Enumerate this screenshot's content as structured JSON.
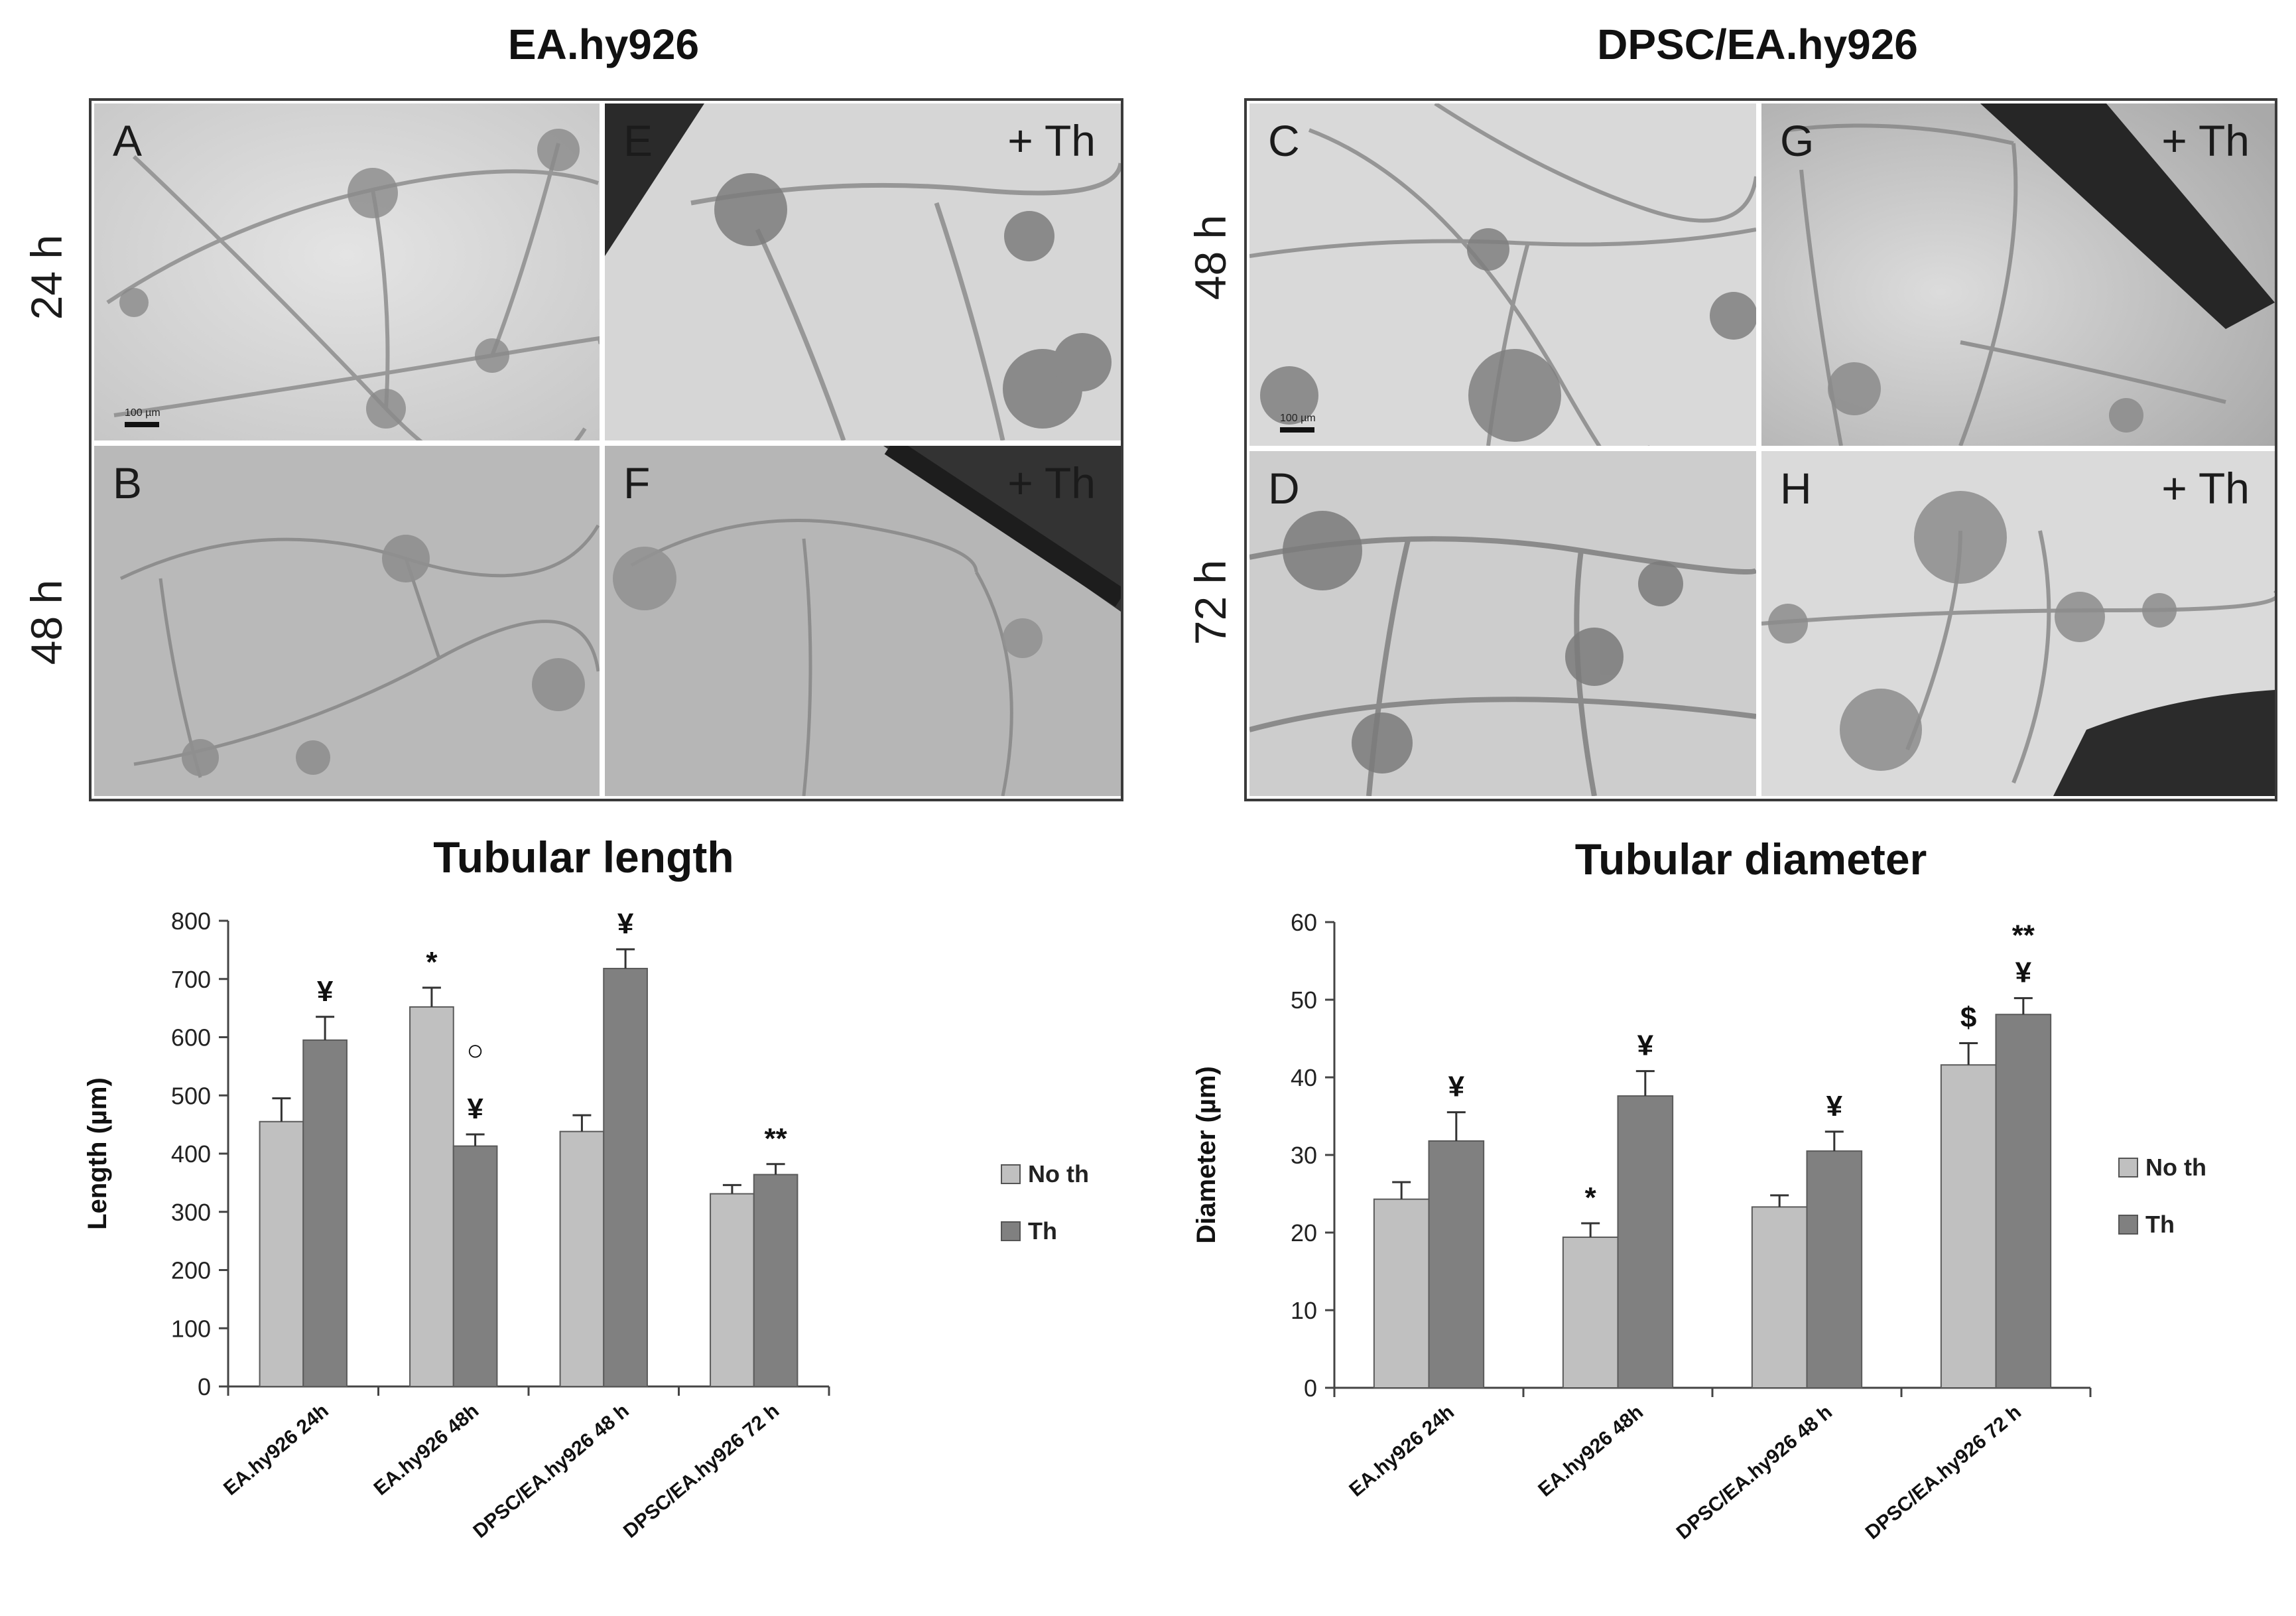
{
  "left_panel": {
    "title": "EA.hy926",
    "row_labels": [
      "24 h",
      "48 h"
    ],
    "images": [
      {
        "label": "A",
        "treatment": "",
        "scale": "100 µm"
      },
      {
        "label": "E",
        "treatment": "+ Th",
        "scale": ""
      },
      {
        "label": "B",
        "treatment": "",
        "scale": ""
      },
      {
        "label": "F",
        "treatment": "+ Th",
        "scale": ""
      }
    ]
  },
  "right_panel": {
    "title": "DPSC/EA.hy926",
    "row_labels": [
      "48 h",
      "72 h"
    ],
    "images": [
      {
        "label": "C",
        "treatment": "",
        "scale": "100 µm"
      },
      {
        "label": "G",
        "treatment": "+ Th",
        "scale": ""
      },
      {
        "label": "D",
        "treatment": "",
        "scale": ""
      },
      {
        "label": "H",
        "treatment": "+ Th",
        "scale": ""
      }
    ]
  },
  "chart_data": [
    {
      "type": "bar",
      "title": "Tubular length",
      "xlabel": "",
      "ylabel": "Length (µm)",
      "ylim": [
        0,
        800
      ],
      "yticks": [
        "0",
        "100",
        "200",
        "300",
        "400",
        "500",
        "600",
        "700",
        "800"
      ],
      "categories": [
        "EA.hy926 24h",
        "EA.hy926 48h",
        "DPSC/EA.hy926 48 h",
        "DPSC/EA.hy926 72 h"
      ],
      "series": [
        {
          "name": "No th",
          "color": "#c0c0c0",
          "values": [
            455,
            652,
            438,
            331
          ],
          "errors": [
            40,
            33,
            28,
            15
          ]
        },
        {
          "name": "Th",
          "color": "#808080",
          "values": [
            595,
            413,
            718,
            364
          ],
          "errors": [
            40,
            20,
            33,
            18
          ]
        }
      ],
      "annotations": [
        {
          "category": 0,
          "series": 1,
          "text": "¥"
        },
        {
          "category": 1,
          "series": 0,
          "text": "*"
        },
        {
          "category": 1,
          "series": 1,
          "text": "¥"
        },
        {
          "category": 1,
          "series": 1,
          "text": "○"
        },
        {
          "category": 2,
          "series": 1,
          "text": "¥"
        },
        {
          "category": 3,
          "series": 1,
          "text": "**"
        }
      ],
      "legend": "right"
    },
    {
      "type": "bar",
      "title": "Tubular diameter",
      "xlabel": "",
      "ylabel": "Diameter (µm)",
      "ylim": [
        0,
        60
      ],
      "yticks": [
        "0",
        "10",
        "20",
        "30",
        "40",
        "50",
        "60"
      ],
      "categories": [
        "EA.hy926 24h",
        "EA.hy926 48h",
        "DPSC/EA.hy926 48 h",
        "DPSC/EA.hy926 72 h"
      ],
      "series": [
        {
          "name": "No th",
          "color": "#c0c0c0",
          "values": [
            24.3,
            19.4,
            23.3,
            41.6
          ],
          "errors": [
            2.2,
            1.8,
            1.5,
            2.8
          ]
        },
        {
          "name": "Th",
          "color": "#808080",
          "values": [
            31.8,
            37.6,
            30.5,
            48.1
          ],
          "errors": [
            3.7,
            3.2,
            2.5,
            2.1
          ]
        }
      ],
      "annotations": [
        {
          "category": 0,
          "series": 1,
          "text": "¥"
        },
        {
          "category": 1,
          "series": 0,
          "text": "*"
        },
        {
          "category": 1,
          "series": 1,
          "text": "¥"
        },
        {
          "category": 2,
          "series": 1,
          "text": "¥"
        },
        {
          "category": 3,
          "series": 0,
          "text": "$"
        },
        {
          "category": 3,
          "series": 1,
          "text": "¥"
        },
        {
          "category": 3,
          "series": 1,
          "text": "**"
        }
      ],
      "legend": "right"
    }
  ]
}
